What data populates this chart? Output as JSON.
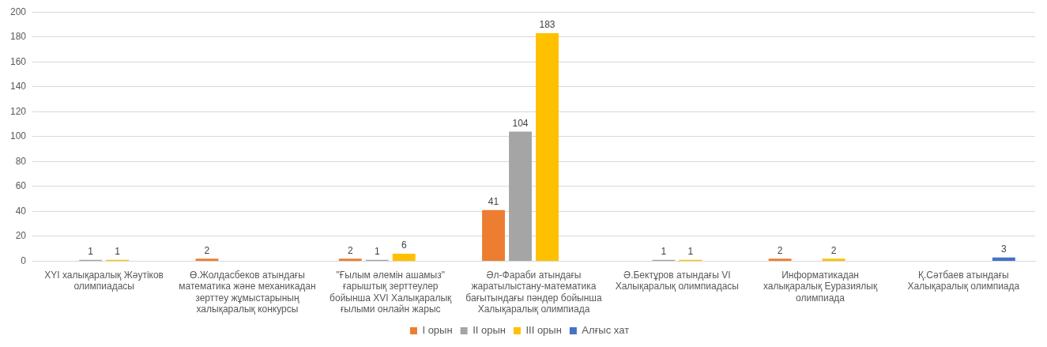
{
  "chart_data": {
    "type": "bar",
    "categories": [
      "XYI халықаралық Жәутіков олимпиадасы",
      "Ө.Жолдасбеков атындағы математика және механикадан зерттеу жұмыстарының халықаралық конкурсы",
      "\"Ғылым әлемін ашамыз\" ғарыштық зерттеулер бойынша XVI Халықаралық ғылыми онлайн жарыс",
      "Әл-Фараби атындағы жаратылыстану-математика бағытындағы пәндер бойынша Халықаралық олимпиада",
      "Ә.Бектұров атындағы VI Халықаралық олимпиадасы",
      "Информатикадан халықаралық Еуразиялық олимпиада",
      "Қ.Сәтбаев атындағы Халықаралық олимпиада"
    ],
    "series": [
      {
        "name": "I орын",
        "color": "#ed7d31",
        "values": [
          null,
          2,
          2,
          41,
          null,
          2,
          null
        ]
      },
      {
        "name": "II орын",
        "color": "#a5a5a5",
        "values": [
          1,
          null,
          1,
          104,
          1,
          null,
          null
        ]
      },
      {
        "name": "III орын",
        "color": "#ffc000",
        "values": [
          1,
          null,
          6,
          183,
          1,
          2,
          null
        ]
      },
      {
        "name": "Алғыс хат",
        "color": "#4472c4",
        "values": [
          null,
          null,
          null,
          null,
          null,
          null,
          3
        ]
      }
    ],
    "ylim": [
      0,
      200
    ],
    "yticks": [
      0,
      20,
      40,
      60,
      80,
      100,
      120,
      140,
      160,
      180,
      200
    ],
    "grid": "y",
    "legend": "bottom",
    "data_labels": true
  }
}
